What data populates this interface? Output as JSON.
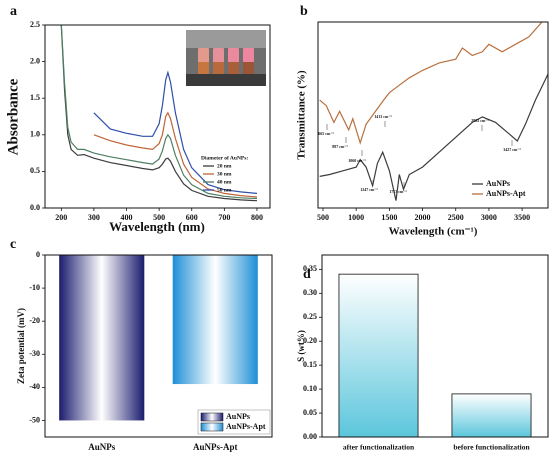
{
  "chart_data": [
    {
      "type": "line",
      "label": "a",
      "xlabel": "Wavelength (nm)",
      "ylabel": "Absorbance",
      "xlim": [
        150,
        840
      ],
      "xticks": [
        200,
        300,
        400,
        500,
        600,
        700,
        800
      ],
      "ylim": [
        0,
        2.5
      ],
      "yticks": [
        {
          "value": 0,
          "label": "0.0"
        },
        0.5,
        {
          "value": 1,
          "label": "1.0"
        },
        1.5,
        {
          "value": 2,
          "label": "2.0"
        },
        2.5
      ],
      "legend_title": "Diameter of AuNPs:",
      "legend": "lower right",
      "x": [
        200,
        210,
        220,
        230,
        250,
        270,
        300,
        350,
        400,
        450,
        480,
        500,
        510,
        520,
        527,
        535,
        550,
        575,
        600,
        650,
        700,
        750,
        800
      ],
      "series": [
        {
          "name": "20 nm",
          "color": "#3c3c3c",
          "values": [
            2.5,
            1.6,
            1.0,
            0.8,
            0.72,
            0.73,
            0.68,
            0.62,
            0.58,
            0.54,
            0.52,
            0.55,
            0.6,
            0.67,
            0.68,
            0.64,
            0.5,
            0.33,
            0.24,
            0.16,
            0.13,
            0.11,
            0.1
          ]
        },
        {
          "name": "30 nm",
          "color": "#c0643a",
          "values": [
            null,
            null,
            null,
            null,
            null,
            null,
            1.0,
            0.92,
            0.86,
            0.82,
            0.8,
            0.88,
            1.0,
            1.25,
            1.3,
            1.22,
            0.95,
            0.6,
            0.42,
            0.26,
            0.2,
            0.17,
            0.15
          ]
        },
        {
          "name": "40 nm",
          "color": "#4e7f62",
          "values": [
            2.5,
            1.7,
            1.1,
            0.9,
            0.8,
            0.8,
            0.75,
            0.7,
            0.66,
            0.62,
            0.6,
            0.67,
            0.78,
            0.95,
            1.0,
            0.95,
            0.72,
            0.45,
            0.32,
            0.2,
            0.16,
            0.14,
            0.13
          ]
        },
        {
          "name": "50 nm",
          "color": "#2f4fa8",
          "values": [
            null,
            null,
            null,
            null,
            null,
            null,
            1.3,
            1.08,
            1.02,
            0.98,
            0.98,
            1.15,
            1.4,
            1.75,
            1.85,
            1.72,
            1.3,
            0.8,
            0.55,
            0.32,
            0.25,
            0.22,
            0.2
          ]
        }
      ]
    },
    {
      "type": "line",
      "label": "b",
      "xlabel": "Wavelength (cm⁻¹)",
      "ylabel": "Transmittance (%)",
      "xlim": [
        425,
        3890
      ],
      "xticks": [
        500,
        1000,
        1500,
        2000,
        2500,
        3000,
        3500
      ],
      "ylim": [
        0,
        100
      ],
      "legend": "lower right",
      "annotations": [
        "665 cm⁻¹",
        "887 cm⁻¹",
        "1060 cm⁻¹",
        "1413 cm⁻¹",
        "1247 cm⁻¹",
        "1713 cm⁻¹",
        "2902 cm⁻¹",
        "3427 cm⁻¹"
      ],
      "series": [
        {
          "name": "AuNPs",
          "color": "#3c3c3c",
          "x": [
            450,
            600,
            800,
            1000,
            1060,
            1150,
            1247,
            1320,
            1400,
            1500,
            1600,
            1650,
            1713,
            1800,
            2000,
            2250,
            2500,
            2750,
            2902,
            3100,
            3300,
            3427,
            3550,
            3700,
            3890
          ],
          "values": [
            17,
            18,
            20,
            22,
            26,
            22,
            12,
            24,
            30,
            20,
            4,
            18,
            10,
            18,
            22,
            30,
            38,
            46,
            49,
            46,
            40,
            36,
            45,
            58,
            72
          ]
        },
        {
          "name": "AuNPs-Apt",
          "color": "#b8703e",
          "x": [
            450,
            550,
            665,
            750,
            887,
            950,
            1060,
            1150,
            1250,
            1413,
            1500,
            1650,
            1800,
            2000,
            2250,
            2500,
            2600,
            2750,
            2900,
            3000,
            3200,
            3400,
            3600,
            3800
          ],
          "values": [
            58,
            55,
            46,
            52,
            42,
            48,
            35,
            45,
            50,
            58,
            62,
            66,
            70,
            74,
            78,
            80,
            86,
            82,
            84,
            88,
            84,
            88,
            92,
            100
          ]
        }
      ]
    },
    {
      "type": "bar",
      "label": "c",
      "ylabel": "Zeta potential (mV)",
      "categories": [
        "AuNPs",
        "AuNPs-Apt"
      ],
      "values": [
        -50,
        -39
      ],
      "colors": [
        "#1b1c6e",
        "#1e8fd6"
      ],
      "gradient": "horizontal",
      "legend": "lower right",
      "ylim": [
        -55,
        0
      ],
      "yticks": [
        0,
        -10,
        -20,
        -30,
        -40,
        -50
      ]
    },
    {
      "type": "bar",
      "label": "d",
      "ylabel": "S (wt%)",
      "categories": [
        "after functionalization",
        "before functionalization"
      ],
      "values": [
        0.34,
        0.09
      ],
      "color": "#5cc6dc",
      "gradient": "vertical",
      "ylim": [
        0,
        0.38
      ],
      "yticks": [
        {
          "value": 0,
          "label": "0.00"
        },
        0.05,
        {
          "value": 0.1,
          "label": "0.10"
        },
        0.15,
        {
          "value": 0.2,
          "label": "0.20"
        },
        0.25,
        {
          "value": 0.3,
          "label": "0.30"
        },
        0.35
      ]
    }
  ]
}
